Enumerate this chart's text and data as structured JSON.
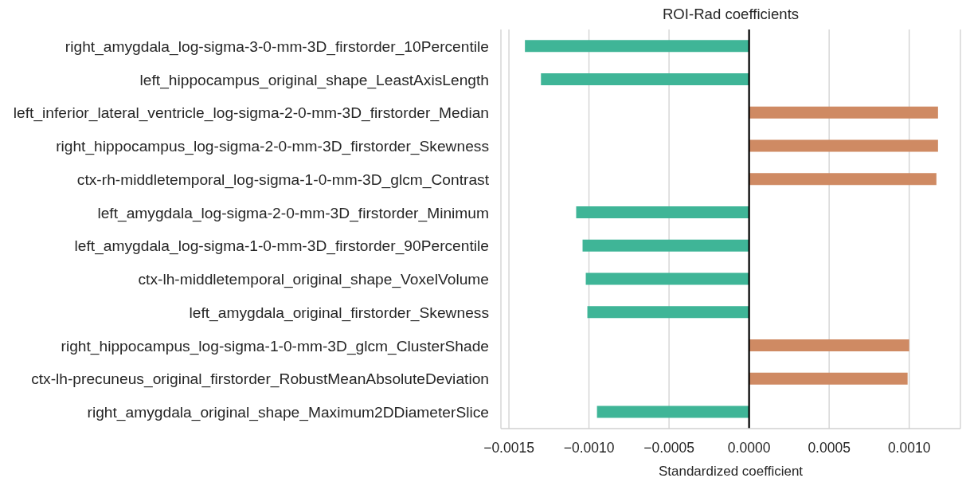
{
  "chart_data": {
    "type": "bar",
    "orientation": "horizontal",
    "title": "ROI-Rad coefficients",
    "xlabel": "Standardized coefficient",
    "categories": [
      "right_amygdala_log-sigma-3-0-mm-3D_firstorder_10Percentile",
      "left_hippocampus_original_shape_LeastAxisLength",
      "left_inferior_lateral_ventricle_log-sigma-2-0-mm-3D_firstorder_Median",
      "right_hippocampus_log-sigma-2-0-mm-3D_firstorder_Skewness",
      "ctx-rh-middletemporal_log-sigma-1-0-mm-3D_glcm_Contrast",
      "left_amygdala_log-sigma-2-0-mm-3D_firstorder_Minimum",
      "left_amygdala_log-sigma-1-0-mm-3D_firstorder_90Percentile",
      "ctx-lh-middletemporal_original_shape_VoxelVolume",
      "left_amygdala_original_firstorder_Skewness",
      "right_hippocampus_log-sigma-1-0-mm-3D_glcm_ClusterShade",
      "ctx-lh-precuneus_original_firstorder_RobustMeanAbsoluteDeviation",
      "right_amygdala_original_shape_Maximum2DDiameterSlice"
    ],
    "values": [
      -0.0014,
      -0.0013,
      0.00118,
      0.00118,
      0.00117,
      -0.00108,
      -0.00104,
      -0.00102,
      -0.00101,
      0.001,
      0.00099,
      -0.00095
    ],
    "colors": [
      "#3fb597",
      "#3fb597",
      "#cf8a63",
      "#cf8a63",
      "#cf8a63",
      "#3fb597",
      "#3fb597",
      "#3fb597",
      "#3fb597",
      "#cf8a63",
      "#cf8a63",
      "#3fb597"
    ],
    "xlim": [
      -0.00155,
      0.00132
    ],
    "xticks": [
      {
        "value": -0.0015,
        "label": "−0.0015"
      },
      {
        "value": -0.001,
        "label": "−0.0010"
      },
      {
        "value": -0.0005,
        "label": "−0.0005"
      },
      {
        "value": 0,
        "label": "0.0000"
      },
      {
        "value": 0.0005,
        "label": "0.0005"
      },
      {
        "value": 0.001,
        "label": "0.0010"
      }
    ],
    "grid": "x",
    "ref_lines": [
      {
        "axis": "x",
        "value": 0,
        "color": "#000000"
      }
    ]
  }
}
